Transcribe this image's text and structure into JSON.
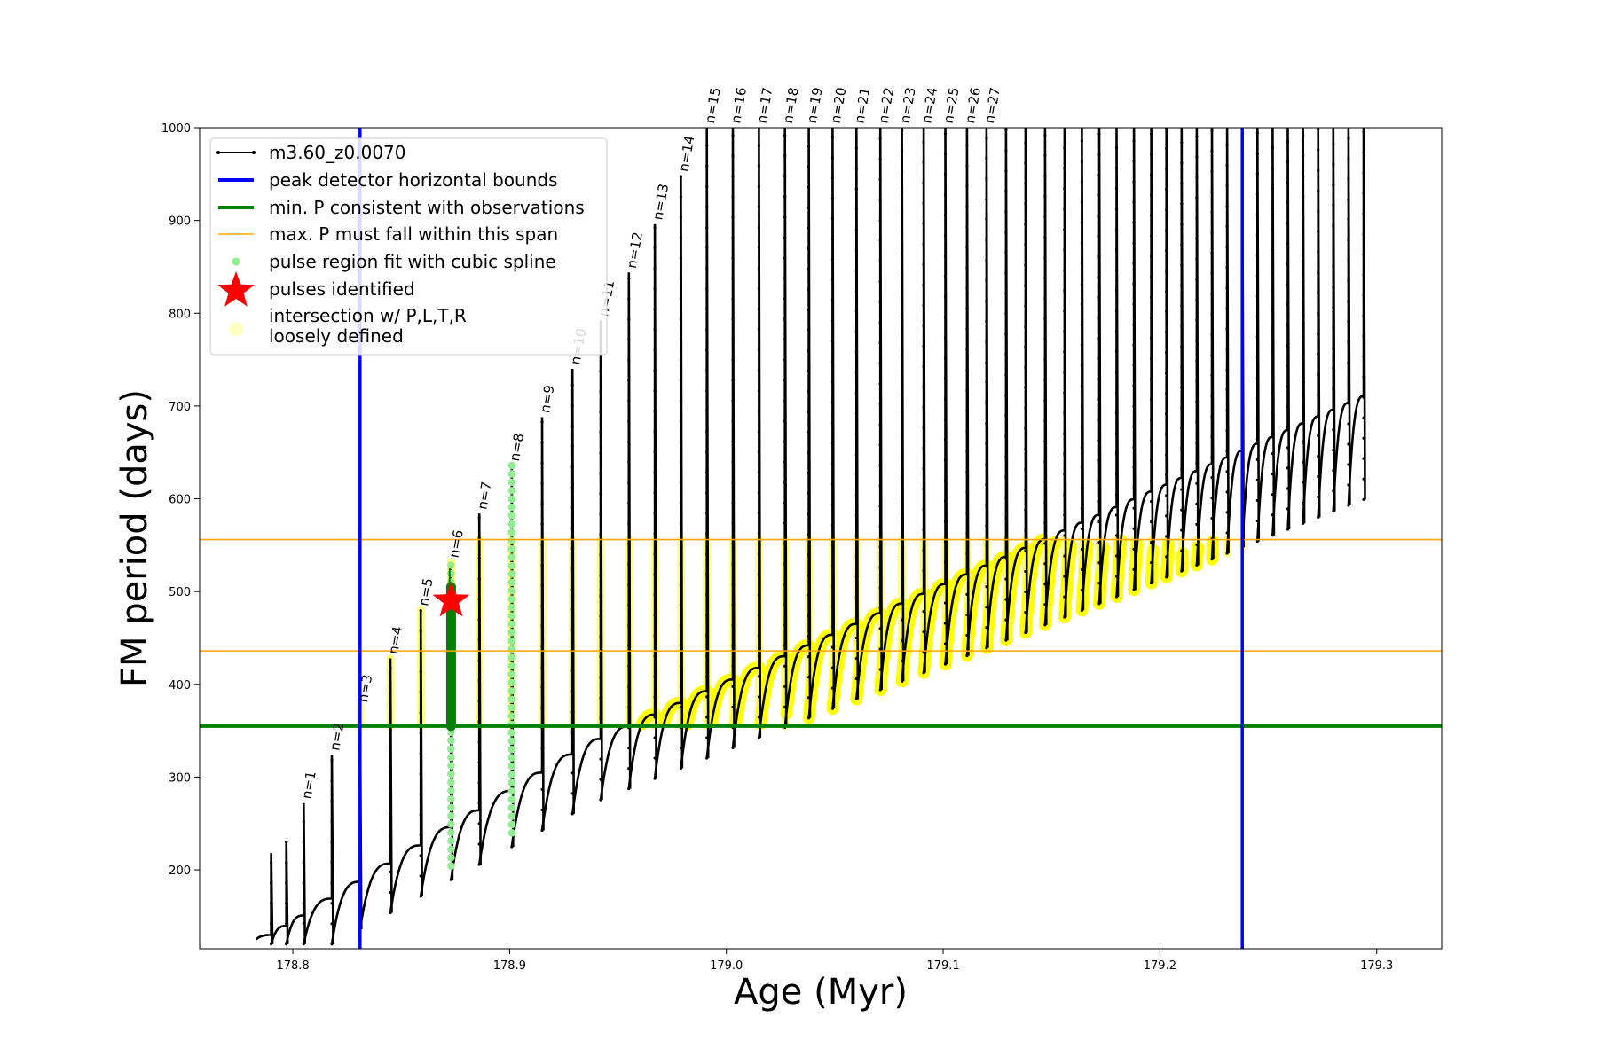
{
  "chart_data": {
    "type": "line",
    "xlabel": "Age (Myr)",
    "ylabel": "FM period (days)",
    "xlim": [
      178.757,
      179.33
    ],
    "ylim": [
      115,
      1000
    ],
    "xticks": [
      178.8,
      178.9,
      179.0,
      179.1,
      179.2,
      179.3
    ],
    "xtick_labels": [
      "178.8",
      "178.9",
      "179.0",
      "179.1",
      "179.2",
      "179.3"
    ],
    "yticks": [
      200,
      300,
      400,
      500,
      600,
      700,
      800,
      900,
      1000
    ],
    "ytick_labels": [
      "200",
      "300",
      "400",
      "500",
      "600",
      "700",
      "800",
      "900",
      "1000"
    ],
    "grid": false,
    "legend": {
      "placement": "top-left",
      "entries": [
        {
          "label": "m3.60_z0.0070",
          "kind": "line-marker",
          "color": "#000000"
        },
        {
          "label": "peak detector horizontal bounds",
          "kind": "line",
          "color": "#0000ff"
        },
        {
          "label": "min. P consistent with observations",
          "kind": "line",
          "color": "#008000"
        },
        {
          "label": "max. P must fall within this span",
          "kind": "line",
          "color": "#ffa500"
        },
        {
          "label": "pulse region fit with cubic spline",
          "kind": "dot",
          "color": "#90ee90"
        },
        {
          "label": "pulses identified",
          "kind": "star",
          "color": "#ff0000"
        },
        {
          "label": "intersection w/ P,L,T,R",
          "label2": "loosely defined",
          "kind": "dot-large",
          "color": "#ffff00"
        }
      ]
    },
    "vertical_lines": [
      {
        "x": 178.831,
        "color": "#0000ff"
      },
      {
        "x": 179.238,
        "color": "#0000ff"
      }
    ],
    "horizontal_lines": [
      {
        "y": 355,
        "color": "#008000"
      },
      {
        "y": 436,
        "color": "#ffa500"
      },
      {
        "y": 556,
        "color": "#ffa500"
      }
    ],
    "pulses": [
      {
        "x": 178.79,
        "label": ""
      },
      {
        "x": 178.797,
        "label": ""
      },
      {
        "x": 178.805,
        "label": "n=1"
      },
      {
        "x": 178.818,
        "label": "n=2"
      },
      {
        "x": 178.831,
        "label": "n=3"
      },
      {
        "x": 178.845,
        "label": "n=4"
      },
      {
        "x": 178.859,
        "label": "n=5"
      },
      {
        "x": 178.873,
        "label": "n=6"
      },
      {
        "x": 178.886,
        "label": "n=7"
      },
      {
        "x": 178.901,
        "label": "n=8"
      },
      {
        "x": 178.915,
        "label": "n=9"
      },
      {
        "x": 178.929,
        "label": "n=10"
      },
      {
        "x": 178.942,
        "label": "n=11"
      },
      {
        "x": 178.955,
        "label": "n=12"
      },
      {
        "x": 178.967,
        "label": "n=13"
      },
      {
        "x": 178.979,
        "label": "n=14"
      },
      {
        "x": 178.991,
        "label": "n=15"
      },
      {
        "x": 179.003,
        "label": "n=16"
      },
      {
        "x": 179.015,
        "label": "n=17"
      },
      {
        "x": 179.027,
        "label": "n=18"
      },
      {
        "x": 179.038,
        "label": "n=19"
      },
      {
        "x": 179.049,
        "label": "n=20"
      },
      {
        "x": 179.06,
        "label": "n=21"
      },
      {
        "x": 179.071,
        "label": "n=22"
      },
      {
        "x": 179.081,
        "label": "n=23"
      },
      {
        "x": 179.091,
        "label": "n=24"
      },
      {
        "x": 179.101,
        "label": "n=25"
      },
      {
        "x": 179.111,
        "label": "n=26"
      },
      {
        "x": 179.12,
        "label": "n=27"
      },
      {
        "x": 179.129,
        "label": ""
      },
      {
        "x": 179.138,
        "label": ""
      },
      {
        "x": 179.147,
        "label": ""
      },
      {
        "x": 179.156,
        "label": ""
      },
      {
        "x": 179.164,
        "label": ""
      },
      {
        "x": 179.172,
        "label": ""
      },
      {
        "x": 179.18,
        "label": ""
      },
      {
        "x": 179.188,
        "label": ""
      },
      {
        "x": 179.196,
        "label": ""
      },
      {
        "x": 179.203,
        "label": ""
      },
      {
        "x": 179.21,
        "label": ""
      },
      {
        "x": 179.217,
        "label": ""
      },
      {
        "x": 179.224,
        "label": ""
      },
      {
        "x": 179.231,
        "label": ""
      },
      {
        "x": 179.238,
        "label": ""
      },
      {
        "x": 179.245,
        "label": ""
      },
      {
        "x": 179.252,
        "label": ""
      },
      {
        "x": 179.259,
        "label": ""
      },
      {
        "x": 179.266,
        "label": ""
      },
      {
        "x": 179.273,
        "label": ""
      },
      {
        "x": 179.28,
        "label": ""
      },
      {
        "x": 179.287,
        "label": ""
      },
      {
        "x": 179.294,
        "label": ""
      }
    ],
    "pulse_identified": {
      "x": 178.873,
      "y": 490
    },
    "spline_pulses": [
      178.873,
      178.901
    ]
  }
}
